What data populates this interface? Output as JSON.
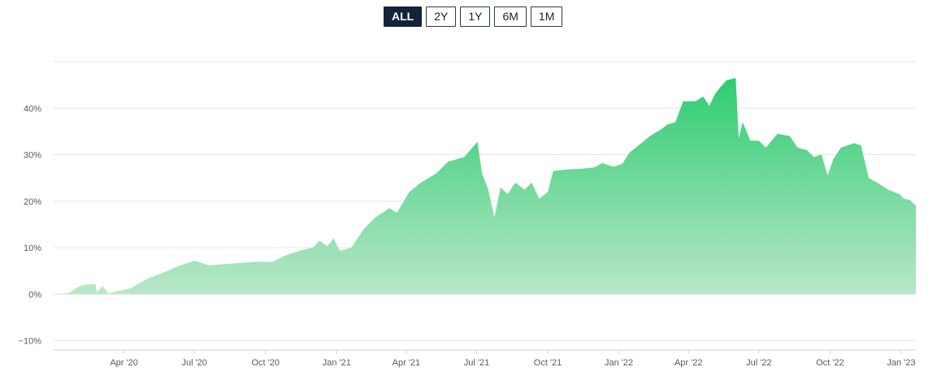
{
  "range_buttons": [
    {
      "label": "ALL",
      "active": true
    },
    {
      "label": "2Y",
      "active": false
    },
    {
      "label": "1Y",
      "active": false
    },
    {
      "label": "6M",
      "active": false
    },
    {
      "label": "1M",
      "active": false
    }
  ],
  "colors": {
    "fill_top": "#2ecc71",
    "fill_bottom": "#b9e7c8",
    "grid": "#e6e6e6",
    "axis": "#c9d6e3",
    "active_button": "#13233a"
  },
  "chart_data": {
    "type": "area",
    "xlim": [
      "2020-01-01",
      "2023-01-20"
    ],
    "ylim": [
      -12,
      50
    ],
    "yticks": [
      -10,
      0,
      10,
      20,
      30,
      40
    ],
    "ytick_labels": [
      "−10%",
      "0%",
      "10%",
      "20%",
      "30%",
      "40%"
    ],
    "xtick_dates": [
      "2020-04-01",
      "2020-07-01",
      "2020-10-01",
      "2021-01-01",
      "2021-04-01",
      "2021-07-01",
      "2021-10-01",
      "2022-01-01",
      "2022-04-01",
      "2022-07-01",
      "2022-10-01",
      "2023-01-01"
    ],
    "xtick_labels": [
      "Apr '20",
      "Jul '20",
      "Oct '20",
      "Jan '21",
      "Apr '21",
      "Jul '21",
      "Oct '21",
      "Jan '22",
      "Apr '22",
      "Jul '22",
      "Oct '22",
      "Jan '23"
    ],
    "grid": true,
    "legend": "none",
    "series": [
      {
        "points": [
          [
            "2020-01-01",
            0
          ],
          [
            "2020-01-20",
            0.2
          ],
          [
            "2020-02-01",
            1.5
          ],
          [
            "2020-02-10",
            2.0
          ],
          [
            "2020-02-24",
            2.2
          ],
          [
            "2020-02-26",
            0.3
          ],
          [
            "2020-03-04",
            1.8
          ],
          [
            "2020-03-12",
            0.1
          ],
          [
            "2020-03-20",
            0.5
          ],
          [
            "2020-04-10",
            1.3
          ],
          [
            "2020-05-01",
            3.3
          ],
          [
            "2020-05-20",
            4.5
          ],
          [
            "2020-06-10",
            6.0
          ],
          [
            "2020-07-01",
            7.2
          ],
          [
            "2020-07-20",
            6.2
          ],
          [
            "2020-08-20",
            6.6
          ],
          [
            "2020-09-20",
            7.0
          ],
          [
            "2020-10-10",
            6.9
          ],
          [
            "2020-10-25",
            8.2
          ],
          [
            "2020-11-15",
            9.4
          ],
          [
            "2020-12-01",
            10.0
          ],
          [
            "2020-12-10",
            11.5
          ],
          [
            "2020-12-20",
            10.3
          ],
          [
            "2020-12-28",
            12.0
          ],
          [
            "2021-01-05",
            9.3
          ],
          [
            "2021-01-20",
            10.0
          ],
          [
            "2021-02-05",
            14.0
          ],
          [
            "2021-02-20",
            16.5
          ],
          [
            "2021-03-10",
            18.5
          ],
          [
            "2021-03-20",
            17.5
          ],
          [
            "2021-04-05",
            22.0
          ],
          [
            "2021-04-20",
            24.0
          ],
          [
            "2021-05-10",
            26.0
          ],
          [
            "2021-05-25",
            28.5
          ],
          [
            "2021-06-15",
            29.5
          ],
          [
            "2021-07-02",
            32.8
          ],
          [
            "2021-07-08",
            26.0
          ],
          [
            "2021-07-16",
            22.5
          ],
          [
            "2021-07-24",
            16.5
          ],
          [
            "2021-08-01",
            23.0
          ],
          [
            "2021-08-10",
            21.5
          ],
          [
            "2021-08-20",
            24.0
          ],
          [
            "2021-09-01",
            22.5
          ],
          [
            "2021-09-10",
            24.0
          ],
          [
            "2021-09-20",
            20.5
          ],
          [
            "2021-10-01",
            22.0
          ],
          [
            "2021-10-08",
            26.5
          ],
          [
            "2021-10-25",
            26.8
          ],
          [
            "2021-11-15",
            27.0
          ],
          [
            "2021-12-01",
            27.3
          ],
          [
            "2021-12-10",
            28.2
          ],
          [
            "2021-12-25",
            27.4
          ],
          [
            "2022-01-05",
            28.0
          ],
          [
            "2022-01-15",
            30.5
          ],
          [
            "2022-01-30",
            32.5
          ],
          [
            "2022-02-10",
            34.0
          ],
          [
            "2022-02-25",
            35.5
          ],
          [
            "2022-03-05",
            36.5
          ],
          [
            "2022-03-15",
            37.0
          ],
          [
            "2022-03-25",
            41.5
          ],
          [
            "2022-04-10",
            41.5
          ],
          [
            "2022-04-20",
            42.5
          ],
          [
            "2022-04-28",
            40.5
          ],
          [
            "2022-05-05",
            43.0
          ],
          [
            "2022-05-12",
            44.5
          ],
          [
            "2022-05-20",
            46.0
          ],
          [
            "2022-06-01",
            46.5
          ],
          [
            "2022-06-05",
            33.5
          ],
          [
            "2022-06-10",
            37.0
          ],
          [
            "2022-06-20",
            33.0
          ],
          [
            "2022-07-01",
            33.0
          ],
          [
            "2022-07-10",
            31.5
          ],
          [
            "2022-07-25",
            34.5
          ],
          [
            "2022-08-10",
            34.0
          ],
          [
            "2022-08-20",
            31.5
          ],
          [
            "2022-09-01",
            31.0
          ],
          [
            "2022-09-10",
            29.5
          ],
          [
            "2022-09-20",
            30.0
          ],
          [
            "2022-09-28",
            25.5
          ],
          [
            "2022-10-05",
            29.0
          ],
          [
            "2022-10-15",
            31.5
          ],
          [
            "2022-11-01",
            32.5
          ],
          [
            "2022-11-10",
            32.0
          ],
          [
            "2022-11-20",
            25.0
          ],
          [
            "2022-12-01",
            24.0
          ],
          [
            "2022-12-15",
            22.5
          ],
          [
            "2022-12-30",
            21.5
          ],
          [
            "2023-01-05",
            20.5
          ],
          [
            "2023-01-12",
            20.3
          ],
          [
            "2023-01-20",
            19.0
          ]
        ]
      }
    ]
  }
}
